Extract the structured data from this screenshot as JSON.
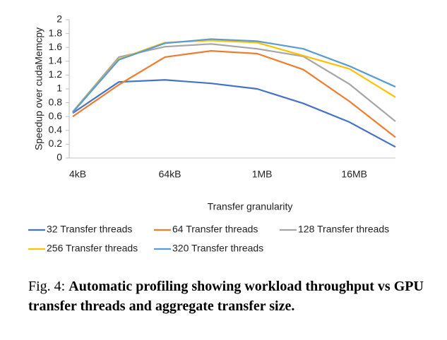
{
  "chart_data": {
    "type": "line",
    "xlabel": "Transfer granularity",
    "ylabel": "Speedup over cudaMemcpy",
    "categories": [
      "4kB",
      null,
      "64kB",
      null,
      "1MB",
      null,
      "16MB",
      null
    ],
    "series": [
      {
        "name": "32 Transfer threads",
        "color": "#4472c4",
        "values": [
          0.65,
          1.1,
          1.13,
          1.08,
          1.0,
          0.79,
          0.52,
          0.16
        ]
      },
      {
        "name": "64 Transfer threads",
        "color": "#ed7d31",
        "values": [
          0.6,
          1.06,
          1.46,
          1.55,
          1.51,
          1.28,
          0.82,
          0.3
        ]
      },
      {
        "name": "128 Transfer threads",
        "color": "#a5a5a5",
        "values": [
          0.67,
          1.46,
          1.61,
          1.65,
          1.58,
          1.47,
          1.07,
          0.53
        ]
      },
      {
        "name": "256 Transfer threads",
        "color": "#ffc000",
        "values": [
          0.66,
          1.43,
          1.67,
          1.7,
          1.67,
          1.48,
          1.29,
          0.88
        ]
      },
      {
        "name": "320 Transfer threads",
        "color": "#5b9bd5",
        "values": [
          0.66,
          1.42,
          1.66,
          1.72,
          1.69,
          1.58,
          1.33,
          1.03
        ]
      }
    ],
    "ylim": [
      0,
      2
    ],
    "yticks": [
      0,
      0.2,
      0.4,
      0.6,
      0.8,
      1,
      1.2,
      1.4,
      1.6,
      1.8,
      2
    ],
    "grid": false,
    "legend": "bottom",
    "caption_label": "Fig. 4:",
    "caption": "Automatic profiling showing workload throughput vs GPU transfer threads and aggregate transfer size."
  }
}
